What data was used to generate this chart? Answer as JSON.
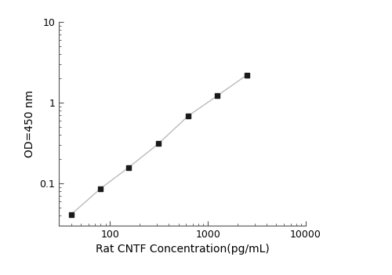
{
  "x": [
    40,
    80,
    156,
    313,
    625,
    1250,
    2500
  ],
  "y": [
    0.041,
    0.086,
    0.158,
    0.31,
    0.68,
    1.22,
    2.2
  ],
  "xlabel": "Rat CNTF Concentration(pg/mL)",
  "ylabel": "OD=450 nm",
  "xlim": [
    30,
    10000
  ],
  "ylim": [
    0.03,
    10
  ],
  "line_color": "#bbbbbb",
  "marker_color": "#1a1a1a",
  "marker": "s",
  "marker_size": 5,
  "line_width": 1.0,
  "background_color": "#ffffff",
  "xlabel_fontsize": 10,
  "ylabel_fontsize": 10,
  "tick_fontsize": 9
}
